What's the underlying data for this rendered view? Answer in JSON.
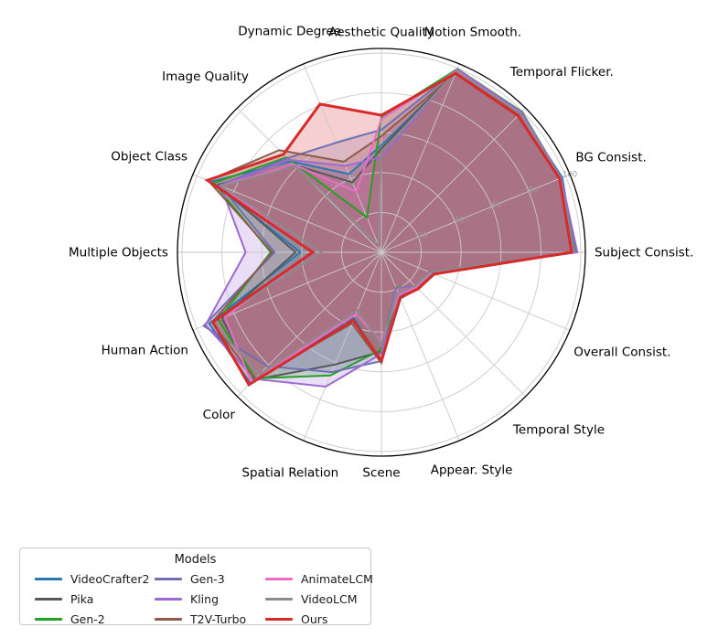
{
  "chart_data": {
    "type": "radar",
    "title": "",
    "r_max": 100,
    "r_ticks": [
      20,
      40,
      60,
      80,
      100
    ],
    "r_label_angle_deg": 22.5,
    "axes": [
      "Aesthetic Quality",
      "Motion Smooth.",
      "Temporal Flicker.",
      "BG Consist.",
      "Subject Consist.",
      "Overall Consist.",
      "Temporal Style",
      "Appear. Style",
      "Scene",
      "Spatial Relation",
      "Color",
      "Human Action",
      "Multiple Objects",
      "Object Class",
      "Image Quality",
      "Dynamic Degree"
    ],
    "series": [
      {
        "name": "VideoCrafter2",
        "color": "#2878b5",
        "values": [
          53.7,
          97.7,
          98.4,
          98.2,
          96.9,
          28.2,
          25.8,
          25.1,
          55.3,
          35.9,
          92.9,
          93.5,
          40.7,
          92.6,
          64.5,
          42.5
        ]
      },
      {
        "name": "Pika",
        "color": "#595959",
        "values": [
          52.0,
          99.5,
          99.7,
          97.4,
          96.9,
          25.9,
          24.2,
          22.3,
          49.8,
          61.0,
          90.6,
          86.5,
          43.1,
          88.7,
          61.9,
          38.0
        ]
      },
      {
        "name": "Gen-2",
        "color": "#23a123",
        "values": [
          68.0,
          99.6,
          99.6,
          97.6,
          97.6,
          26.2,
          24.1,
          19.3,
          48.9,
          66.9,
          89.5,
          88.5,
          55.5,
          90.9,
          67.4,
          19.0
        ]
      },
      {
        "name": "Gen-3",
        "color": "#6f6fb4",
        "values": [
          61.5,
          99.2,
          98.6,
          96.6,
          97.1,
          26.7,
          24.7,
          24.3,
          54.6,
          65.1,
          80.9,
          96.5,
          53.6,
          87.8,
          66.8,
          59.5
        ]
      },
      {
        "name": "Kling",
        "color": "#9c6ad1",
        "values": [
          47.7,
          99.4,
          99.3,
          97.6,
          98.3,
          26.4,
          24.2,
          19.6,
          50.9,
          73.0,
          89.9,
          95.5,
          68.1,
          87.2,
          65.6,
          46.9
        ]
      },
      {
        "name": "T2V-Turbo",
        "color": "#8d5b4c",
        "values": [
          58.3,
          97.3,
          97.5,
          97.0,
          96.3,
          28.2,
          25.5,
          24.4,
          55.6,
          38.7,
          89.9,
          92.0,
          54.7,
          94.0,
          72.5,
          49.2
        ]
      },
      {
        "name": "AnimateLCM",
        "color": "#ec6dc8",
        "values": [
          66.8,
          98.6,
          98.4,
          96.6,
          96.6,
          26.3,
          24.8,
          23.0,
          44.8,
          33.5,
          92.3,
          85.0,
          34.7,
          87.3,
          62.3,
          33.0
        ]
      },
      {
        "name": "VideoLCM",
        "color": "#8c8c8c",
        "values": [
          50.5,
          98.3,
          98.4,
          97.2,
          96.5,
          26.0,
          24.0,
          22.0,
          46.0,
          31.5,
          86.5,
          92.0,
          30.0,
          87.0,
          61.0,
          4.0
        ]
      },
      {
        "name": "Ours",
        "color": "#d62b2b",
        "values": [
          68.8,
          97.2,
          96.9,
          96.7,
          95.4,
          28.6,
          26.0,
          24.6,
          54.5,
          37.0,
          94.0,
          91.5,
          34.5,
          94.5,
          69.5,
          80.5
        ]
      }
    ],
    "legend": {
      "title": "Models",
      "columns": 3,
      "position": "lower-left"
    }
  },
  "style": {
    "grid_color": "#cacaca",
    "spine_color": "#000000",
    "tick_label_color": "#9b9b9b",
    "fill_opacity": 0.22,
    "line_width": 2,
    "highlight_series": "Ours",
    "highlight_line_width": 3,
    "background": "#ffffff"
  }
}
